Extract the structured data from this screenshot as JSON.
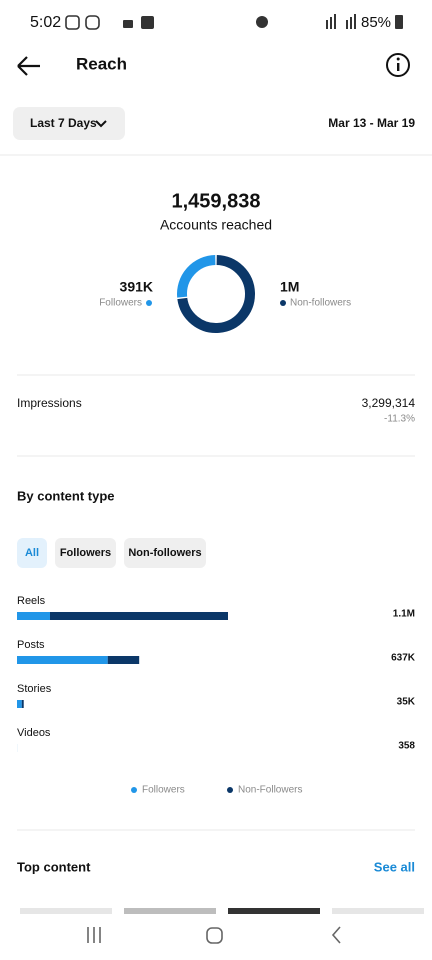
{
  "status_bar": {
    "time": "5:02",
    "battery": "85%"
  },
  "header": {
    "title": "Reach"
  },
  "filter": {
    "period": "Last 7 Days",
    "date_range": "Mar 13 - Mar 19"
  },
  "summary": {
    "total": "1,459,838",
    "label": "Accounts reached"
  },
  "impressions": {
    "label": "Impressions",
    "value": "3,299,314",
    "change": "-11.3%"
  },
  "content_filters": [
    "All",
    "Followers",
    "Non-followers"
  ],
  "top_content": {
    "title": "Top content",
    "link": "See all"
  },
  "chart_data": [
    {
      "type": "donut",
      "categories": [
        "Followers",
        "Non-followers"
      ],
      "values": [
        391000,
        1068838
      ],
      "value_labels": [
        "391K",
        "1M"
      ],
      "colors": [
        "#2196e8",
        "#0b3768"
      ]
    },
    {
      "type": "hbar_stacked",
      "title": "By content type",
      "categories": [
        "Reels",
        "Posts",
        "Stories",
        "Videos"
      ],
      "series": [
        {
          "name": "Followers",
          "color": "#2196e8",
          "values": [
            172000,
            473000,
            25000,
            300
          ]
        },
        {
          "name": "Non-Followers",
          "color": "#0b3768",
          "values": [
            928000,
            164000,
            10000,
            58
          ]
        }
      ],
      "totals": [
        1100000,
        637000,
        35000,
        358
      ],
      "total_labels": [
        "1.1M",
        "637K",
        "35K",
        "358"
      ]
    }
  ]
}
